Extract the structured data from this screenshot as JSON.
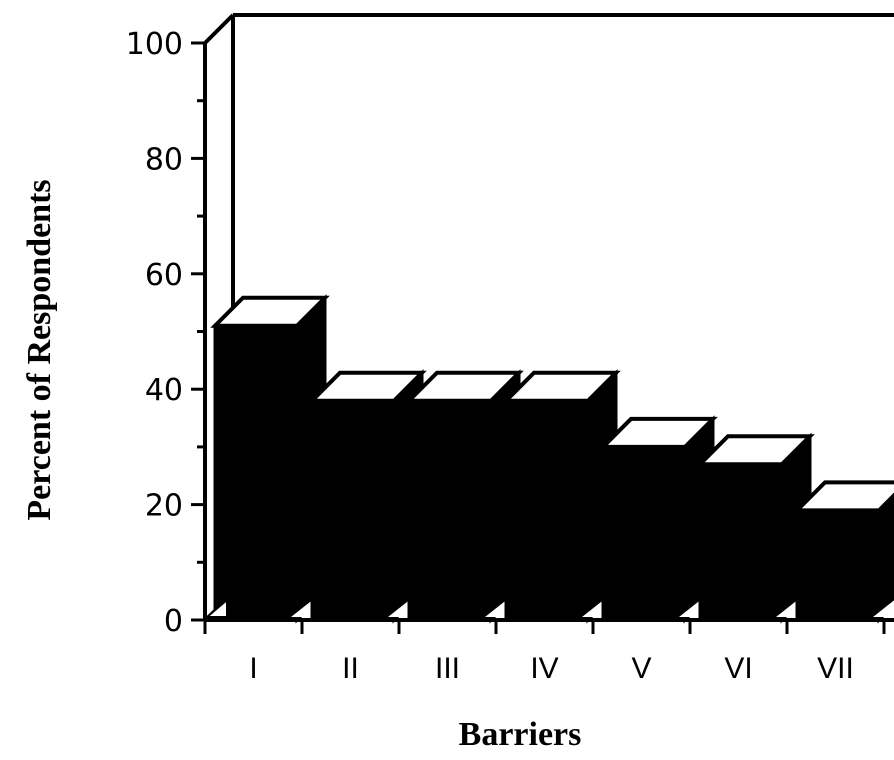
{
  "chart_data": {
    "type": "bar",
    "title": "",
    "xlabel": "Barriers",
    "ylabel": "Percent of Respondents",
    "ylim": [
      0,
      100
    ],
    "yticks": [
      0,
      20,
      40,
      60,
      80,
      100
    ],
    "categories": [
      "I",
      "II",
      "III",
      "IV",
      "V",
      "VI",
      "VII"
    ],
    "values": [
      51,
      38,
      38,
      38,
      30,
      27,
      19
    ],
    "grid": false,
    "legend": "none",
    "style": "3d",
    "colors": {
      "bar": "#000000",
      "top": "#ffffff",
      "axis": "#000000"
    }
  }
}
